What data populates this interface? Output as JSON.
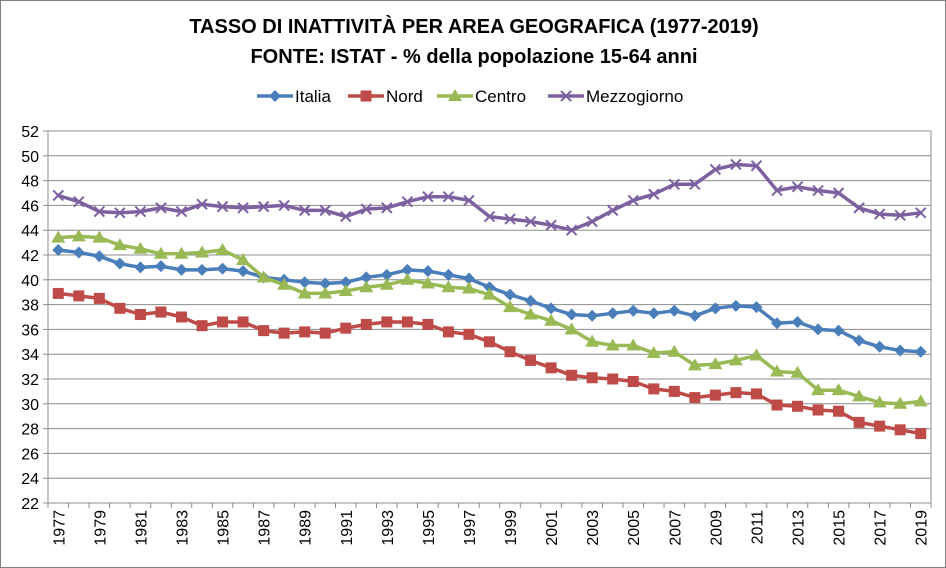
{
  "chart_data": {
    "type": "line",
    "title": "TASSO DI INATTIVITÀ PER AREA GEOGRAFICA (1977-2019)",
    "subtitle": "FONTE: ISTAT - % della popolazione 15-64 anni",
    "legend_position": "top",
    "grid": true,
    "ylim": [
      22,
      52
    ],
    "y_ticks": [
      "52",
      "50",
      "48",
      "46",
      "44",
      "42",
      "40",
      "38",
      "36",
      "34",
      "32",
      "30",
      "28",
      "26",
      "24",
      "22"
    ],
    "x": [
      1977,
      1978,
      1979,
      1980,
      1981,
      1982,
      1983,
      1984,
      1985,
      1986,
      1987,
      1988,
      1989,
      1990,
      1991,
      1992,
      1993,
      1994,
      1995,
      1996,
      1997,
      1998,
      1999,
      2000,
      2001,
      2002,
      2003,
      2004,
      2005,
      2006,
      2007,
      2008,
      2009,
      2010,
      2011,
      2012,
      2013,
      2014,
      2015,
      2016,
      2017,
      2018,
      2019
    ],
    "x_tick_labels": [
      "1977",
      "1979",
      "1981",
      "1983",
      "1985",
      "1987",
      "1989",
      "1991",
      "1993",
      "1995",
      "1997",
      "1999",
      "2001",
      "2003",
      "2005",
      "2007",
      "2009",
      "2011",
      "2013",
      "2015",
      "2017",
      "2019"
    ],
    "series": [
      {
        "name": "Italia",
        "color": "#4a7ebb",
        "marker": "diamond",
        "values": [
          42.4,
          42.2,
          41.9,
          41.3,
          41.0,
          41.1,
          40.8,
          40.8,
          40.9,
          40.7,
          40.2,
          40.0,
          39.8,
          39.7,
          39.8,
          40.2,
          40.4,
          40.8,
          40.7,
          40.4,
          40.1,
          39.4,
          38.8,
          38.3,
          37.7,
          37.2,
          37.1,
          37.3,
          37.5,
          37.3,
          37.5,
          37.1,
          37.7,
          37.9,
          37.8,
          36.5,
          36.6,
          36.0,
          35.9,
          35.1,
          34.6,
          34.3,
          34.2
        ]
      },
      {
        "name": "Nord",
        "color": "#be4b48",
        "marker": "square",
        "values": [
          38.9,
          38.7,
          38.5,
          37.7,
          37.2,
          37.4,
          37.0,
          36.3,
          36.6,
          36.6,
          35.9,
          35.7,
          35.8,
          35.7,
          36.1,
          36.4,
          36.6,
          36.6,
          36.4,
          35.8,
          35.6,
          35.0,
          34.2,
          33.5,
          32.9,
          32.3,
          32.1,
          32.0,
          31.8,
          31.2,
          31.0,
          30.5,
          30.7,
          30.9,
          30.8,
          29.9,
          29.8,
          29.5,
          29.4,
          28.5,
          28.2,
          27.9,
          27.6
        ]
      },
      {
        "name": "Centro",
        "color": "#98b954",
        "marker": "triangle",
        "values": [
          43.4,
          43.5,
          43.4,
          42.8,
          42.5,
          42.1,
          42.1,
          42.2,
          42.4,
          41.6,
          40.2,
          39.6,
          38.9,
          38.9,
          39.1,
          39.4,
          39.6,
          40.0,
          39.7,
          39.4,
          39.3,
          38.8,
          37.8,
          37.2,
          36.7,
          36.0,
          35.0,
          34.7,
          34.7,
          34.1,
          34.2,
          33.1,
          33.2,
          33.5,
          33.9,
          32.6,
          32.5,
          31.1,
          31.1,
          30.6,
          30.1,
          30.0,
          30.2
        ]
      },
      {
        "name": "Mezzogiorno",
        "color": "#7d60a0",
        "marker": "x",
        "values": [
          46.8,
          46.3,
          45.5,
          45.4,
          45.5,
          45.8,
          45.5,
          46.1,
          45.9,
          45.8,
          45.9,
          46.0,
          45.6,
          45.6,
          45.1,
          45.7,
          45.8,
          46.3,
          46.7,
          46.7,
          46.4,
          45.1,
          44.9,
          44.7,
          44.4,
          44.0,
          44.7,
          45.6,
          46.4,
          46.9,
          47.7,
          47.7,
          48.9,
          49.3,
          49.2,
          47.2,
          47.5,
          47.2,
          47.0,
          45.8,
          45.3,
          45.2,
          45.4
        ]
      }
    ]
  }
}
